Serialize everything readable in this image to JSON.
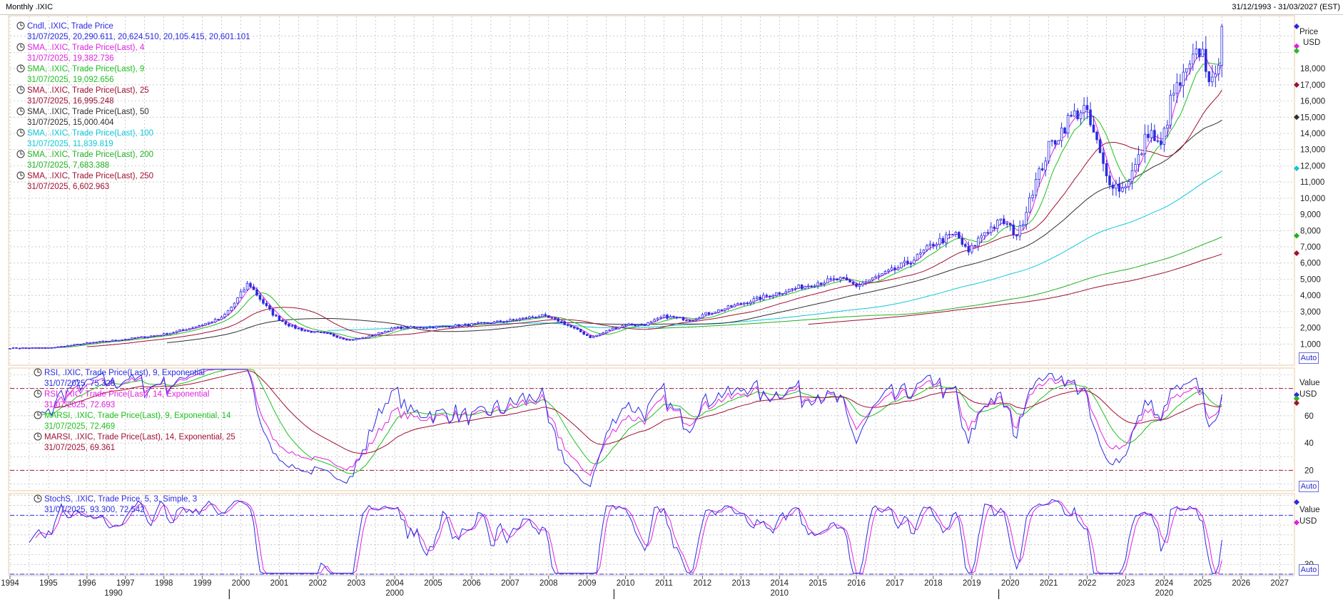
{
  "header": {
    "title": "Monthly .IXIC",
    "date_range": "31/12/1993 - 31/03/2027 (EST)"
  },
  "colors": {
    "candle": "#2a2ae0",
    "sma4": "#e020e0",
    "sma9": "#20c020",
    "sma25": "#a01030",
    "sma50": "#303030",
    "sma100": "#10c8d8",
    "sma200": "#20b020",
    "sma250": "#a01030",
    "rsi9": "#2a2ae0",
    "rsi14": "#e020e0",
    "marsi9": "#20c020",
    "marsi14": "#a01030",
    "stoch_k": "#2a2ae0",
    "stoch_d": "#e020e0",
    "grid": "#b8b8b8",
    "panel_border": "#e8c8a0"
  },
  "price_panel": {
    "legend": [
      {
        "label": "Cndl, .IXIC, Trade Price",
        "value": "31/07/2025, 20,290.611, 20,624.510, 20,105.415, 20,601.101",
        "color": "#2a2ae0"
      },
      {
        "label": "SMA, .IXIC, Trade Price(Last),  4",
        "value": "31/07/2025, 19,382.736",
        "color": "#e020e0"
      },
      {
        "label": "SMA, .IXIC, Trade Price(Last),  9",
        "value": "31/07/2025, 19,092.656",
        "color": "#20c020"
      },
      {
        "label": "SMA, .IXIC, Trade Price(Last),  25",
        "value": "31/07/2025, 16,995.248",
        "color": "#a01030"
      },
      {
        "label": "SMA, .IXIC, Trade Price(Last),  50",
        "value": "31/07/2025, 15,000.404",
        "color": "#303030"
      },
      {
        "label": "SMA, .IXIC, Trade Price(Last),  100",
        "value": "31/07/2025, 11,839.819",
        "color": "#10c8d8"
      },
      {
        "label": "SMA, .IXIC, Trade Price(Last),  200",
        "value": "31/07/2025, 7,683.388",
        "color": "#20b020"
      },
      {
        "label": "SMA, .IXIC, Trade Price(Last),  250",
        "value": "31/07/2025, 6,602.963",
        "color": "#a01030"
      }
    ],
    "axis_title": "Price",
    "axis_unit": "USD",
    "auto_label": "Auto"
  },
  "rsi_panel": {
    "legend": [
      {
        "label": "RSI, .IXIC, Trade Price(Last),  9, Exponential",
        "value": "31/07/2025, 75.328",
        "color": "#2a2ae0"
      },
      {
        "label": "RSI, .IXIC, Trade Price(Last),  14, Exponential",
        "value": "31/07/2025, 72.693",
        "color": "#e020e0"
      },
      {
        "label": "MARSI, .IXIC, Trade Price(Last),  9, Exponential, 14",
        "value": "31/07/2025, 72.469",
        "color": "#20c020"
      },
      {
        "label": "MARSI, .IXIC, Trade Price(Last),  14, Exponential, 25",
        "value": "31/07/2025, 69.361",
        "color": "#a01030"
      }
    ],
    "axis_title": "Value",
    "axis_unit": "USD",
    "auto_label": "Auto"
  },
  "stoch_panel": {
    "legend": [
      {
        "label": "StochS, .IXIC, Trade Price,  5, 3, Simple, 3",
        "value": "31/07/2025, 93.300, 72.542",
        "color": "#2a2ae0"
      }
    ],
    "axis_title": "Value",
    "axis_unit": "USD",
    "auto_label": "Auto"
  },
  "x_axis": {
    "years": [
      "1994",
      "1995",
      "1996",
      "1997",
      "1998",
      "1999",
      "2000",
      "2001",
      "2002",
      "2003",
      "2004",
      "2005",
      "2006",
      "2007",
      "2008",
      "2009",
      "2010",
      "2011",
      "2012",
      "2013",
      "2014",
      "2015",
      "2016",
      "2017",
      "2018",
      "2019",
      "2020",
      "2021",
      "2022",
      "2023",
      "2024",
      "2025",
      "2026",
      "2027"
    ],
    "decades": [
      "1990",
      "2000",
      "2010",
      "2020"
    ]
  },
  "chart_data": [
    {
      "type": "line",
      "panel": "price",
      "ylim": [
        0,
        21000
      ],
      "yticks": [
        1000,
        2000,
        3000,
        4000,
        5000,
        6000,
        7000,
        8000,
        9000,
        10000,
        11000,
        12000,
        13000,
        14000,
        15000,
        16000,
        17000,
        18000
      ],
      "ytick_labels": [
        "1,000",
        "2,000",
        "3,000",
        "4,000",
        "5,000",
        "6,000",
        "7,000",
        "8,000",
        "9,000",
        "10,000",
        "11,000",
        "12,000",
        "13,000",
        "14,000",
        "15,000",
        "16,000",
        "17,000",
        "18,000"
      ],
      "last_values": {
        "close": 20601.101,
        "sma4": 19382.736,
        "sma9": 19092.656,
        "sma25": 16995.248,
        "sma50": 15000.404,
        "sma100": 11839.819,
        "sma200": 7683.388,
        "sma250": 6602.963
      },
      "anchors": [
        [
          1994.0,
          750
        ],
        [
          1995.0,
          760
        ],
        [
          1996.0,
          1050
        ],
        [
          1997.0,
          1300
        ],
        [
          1998.0,
          1600
        ],
        [
          1999.0,
          2200
        ],
        [
          1999.5,
          2600
        ],
        [
          2000.0,
          4100
        ],
        [
          2000.2,
          4800
        ],
        [
          2000.5,
          3800
        ],
        [
          2000.9,
          2700
        ],
        [
          2001.3,
          2100
        ],
        [
          2001.7,
          1800
        ],
        [
          2002.3,
          1600
        ],
        [
          2002.8,
          1250
        ],
        [
          2003.2,
          1400
        ],
        [
          2004.0,
          2000
        ],
        [
          2005.0,
          2050
        ],
        [
          2006.0,
          2200
        ],
        [
          2007.0,
          2450
        ],
        [
          2007.8,
          2750
        ],
        [
          2008.3,
          2400
        ],
        [
          2008.8,
          1800
        ],
        [
          2009.1,
          1400
        ],
        [
          2009.6,
          1900
        ],
        [
          2010.0,
          2200
        ],
        [
          2010.5,
          2200
        ],
        [
          2011.0,
          2700
        ],
        [
          2011.7,
          2500
        ],
        [
          2012.0,
          2800
        ],
        [
          2013.0,
          3500
        ],
        [
          2014.0,
          4200
        ],
        [
          2015.0,
          4800
        ],
        [
          2015.6,
          5000
        ],
        [
          2016.0,
          4600
        ],
        [
          2016.5,
          5100
        ],
        [
          2017.0,
          5600
        ],
        [
          2017.6,
          6400
        ],
        [
          2018.0,
          7200
        ],
        [
          2018.6,
          7800
        ],
        [
          2018.9,
          6600
        ],
        [
          2019.3,
          7900
        ],
        [
          2019.8,
          8600
        ],
        [
          2020.2,
          7700
        ],
        [
          2020.5,
          10100
        ],
        [
          2021.0,
          13100
        ],
        [
          2021.5,
          14800
        ],
        [
          2021.9,
          15600
        ],
        [
          2022.2,
          13800
        ],
        [
          2022.5,
          11300
        ],
        [
          2022.9,
          10500
        ],
        [
          2023.3,
          12200
        ],
        [
          2023.6,
          14300
        ],
        [
          2023.9,
          13000
        ],
        [
          2024.2,
          16300
        ],
        [
          2024.6,
          17700
        ],
        [
          2024.95,
          19300
        ],
        [
          2025.2,
          17400
        ],
        [
          2025.3,
          16500
        ],
        [
          2025.5,
          20601
        ]
      ]
    },
    {
      "type": "line",
      "panel": "rsi",
      "ylim": [
        5,
        95
      ],
      "yticks": [
        20,
        40,
        60
      ],
      "reference_lines": [
        80,
        20
      ],
      "last_values": {
        "rsi9": 75.328,
        "rsi14": 72.693,
        "marsi9_14": 72.469,
        "marsi14_25": 69.361
      }
    },
    {
      "type": "line",
      "panel": "stochastic",
      "ylim": [
        20,
        102
      ],
      "yticks": [
        30
      ],
      "reference_lines": [
        80,
        20
      ],
      "last_values": {
        "k": 93.3,
        "d": 72.542
      }
    }
  ]
}
